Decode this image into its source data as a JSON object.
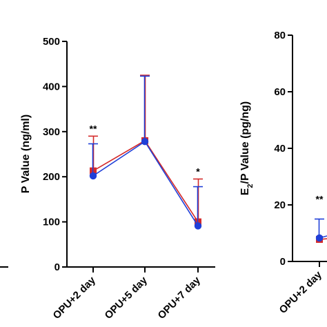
{
  "chart_data": [
    {
      "type": "line",
      "ylabel": "P Value (ng/ml)",
      "ylim": [
        0,
        500
      ],
      "yticks": [
        0,
        100,
        200,
        300,
        400,
        500
      ],
      "categories": [
        "OPU+2 day",
        "OPU+5 day",
        "OPU+7 day"
      ],
      "series": [
        {
          "color": "#d42a2a",
          "marker": "square",
          "values": [
            213,
            280,
            100
          ],
          "err_upper": [
            290,
            425,
            195
          ]
        },
        {
          "color": "#1f3fd8",
          "marker": "circle",
          "values": [
            202,
            278,
            91
          ],
          "err_upper": [
            273,
            423,
            178
          ]
        }
      ],
      "annotations": [
        "**",
        "",
        "*"
      ],
      "grid": false
    },
    {
      "type": "line",
      "ylabel_main": "E",
      "ylabel_sub": "2",
      "ylabel_rest": "/P Value (pg/ng)",
      "ylim": [
        0,
        80
      ],
      "yticks": [
        0,
        20,
        40,
        60,
        80
      ],
      "categories": [
        "OPU+2 day"
      ],
      "series": [
        {
          "color": "#d42a2a",
          "marker": "square",
          "values": [
            7.8
          ]
        },
        {
          "color": "#1f3fd8",
          "marker": "circle",
          "values": [
            8.3
          ],
          "err_upper": [
            15
          ]
        }
      ],
      "annotations": [
        "**"
      ],
      "grid": false
    }
  ]
}
